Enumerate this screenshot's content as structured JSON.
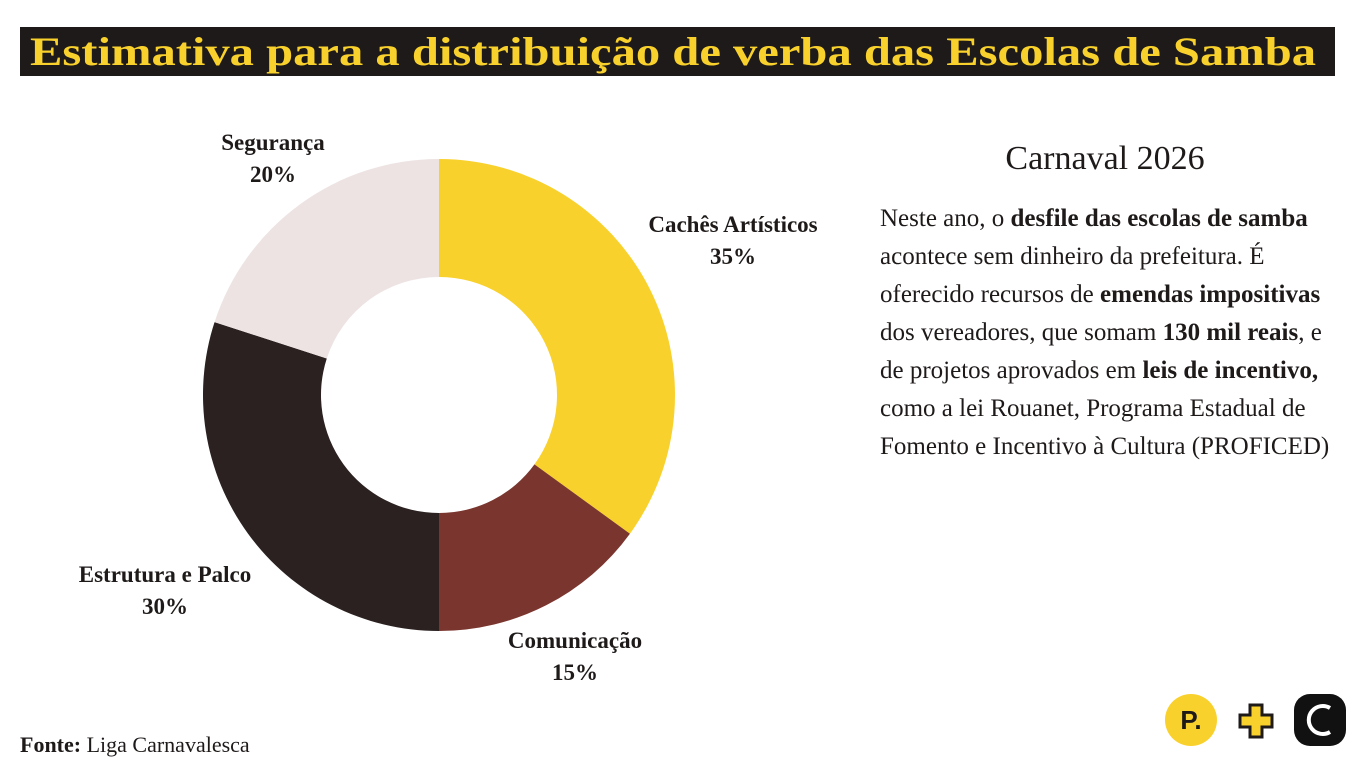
{
  "chart_data": {
    "type": "donut",
    "title": "Estimativa para a distribuição de verba das Escolas de Samba",
    "categories": [
      "Cachês Artísticos",
      "Comunicação",
      "Estrutura e Palco",
      "Segurança"
    ],
    "values": [
      35,
      15,
      30,
      20
    ],
    "value_labels": [
      "35%",
      "15%",
      "30%",
      "20%"
    ],
    "colors": [
      "#f9d12d",
      "#7a352e",
      "#2a2120",
      "#ede3e3"
    ]
  },
  "sidebar": {
    "heading": "Carnaval 2026",
    "body": [
      {
        "text": "Neste ano, o ",
        "bold": false
      },
      {
        "text": "desfile das escolas de samba",
        "bold": true
      },
      {
        "text": " acontece sem dinheiro da prefeitura. É oferecido recursos de ",
        "bold": false
      },
      {
        "text": "emendas impositivas",
        "bold": true
      },
      {
        "text": " dos vereadores, que somam ",
        "bold": false
      },
      {
        "text": "130 mil reais",
        "bold": true
      },
      {
        "text": ", e de projetos aprovados em ",
        "bold": false
      },
      {
        "text": "leis de incentivo,",
        "bold": true
      },
      {
        "text": " como a lei Rouanet, Programa Estadual de Fomento e Incentivo à Cultura (PROFICED)",
        "bold": false
      }
    ]
  },
  "footer": {
    "source_label": "Fonte:",
    "source": "Liga Carnavalesca",
    "logo": "P."
  }
}
